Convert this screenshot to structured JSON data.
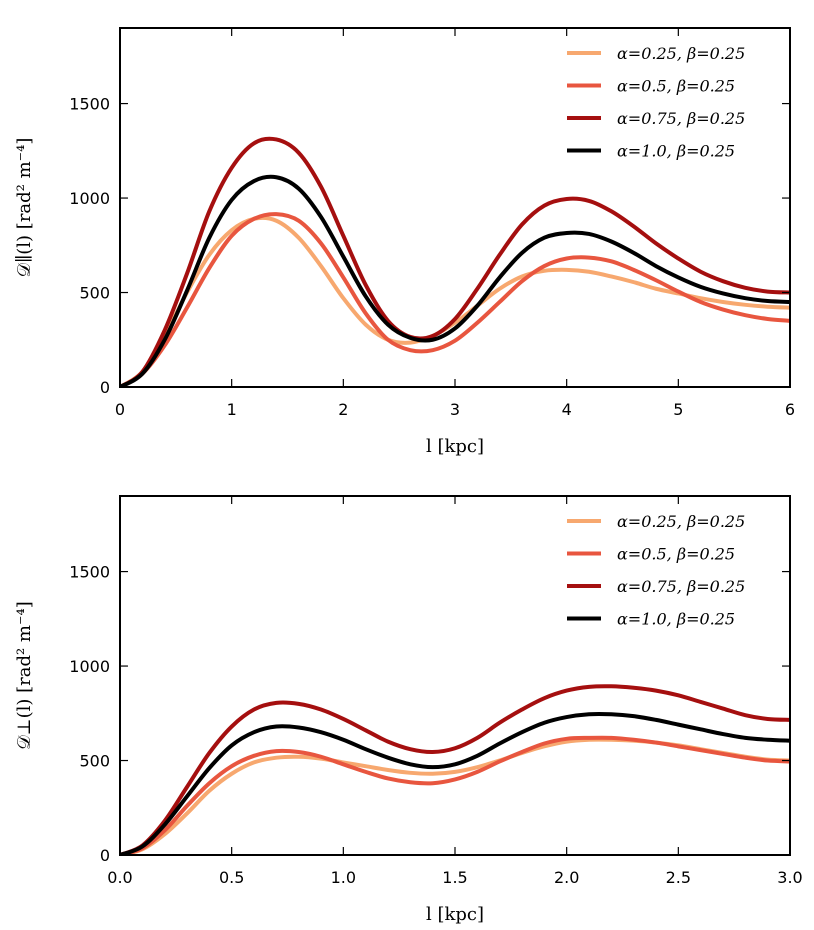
{
  "chart_data": [
    {
      "type": "line",
      "name": "parallel",
      "xlabel": "l [kpc]",
      "ylabel": "𝒟∥(l) [rad² m⁻⁴]",
      "xlim": [
        0,
        6
      ],
      "ylim": [
        0,
        1900
      ],
      "xticks": [
        0,
        1,
        2,
        3,
        4,
        5,
        6
      ],
      "xtick_labels": [
        "0",
        "1",
        "2",
        "3",
        "4",
        "5",
        "6"
      ],
      "yticks": [
        0,
        500,
        1000,
        1500
      ],
      "ytick_labels": [
        "0",
        "500",
        "1000",
        "1500"
      ],
      "grid": false,
      "legend_position": "top-right",
      "series": [
        {
          "name": "α=0.25, β=0.25",
          "color": "#f7a86f",
          "x": [
            0,
            0.2,
            0.4,
            0.6,
            0.8,
            1.0,
            1.2,
            1.4,
            1.6,
            1.8,
            2.0,
            2.2,
            2.4,
            2.6,
            2.8,
            3.0,
            3.2,
            3.4,
            3.6,
            3.8,
            4.0,
            4.2,
            4.4,
            4.6,
            4.8,
            5.0,
            5.2,
            5.4,
            5.6,
            5.8,
            6.0
          ],
          "y": [
            0,
            80,
            270,
            500,
            700,
            830,
            890,
            880,
            790,
            640,
            470,
            330,
            250,
            235,
            270,
            340,
            430,
            520,
            585,
            615,
            620,
            610,
            585,
            555,
            520,
            495,
            470,
            450,
            435,
            425,
            420
          ]
        },
        {
          "name": "α=0.5, β=0.25",
          "color": "#e8563f",
          "x": [
            0,
            0.2,
            0.4,
            0.6,
            0.8,
            1.0,
            1.2,
            1.4,
            1.6,
            1.8,
            2.0,
            2.2,
            2.4,
            2.6,
            2.8,
            3.0,
            3.2,
            3.4,
            3.6,
            3.8,
            4.0,
            4.2,
            4.4,
            4.6,
            4.8,
            5.0,
            5.2,
            5.4,
            5.6,
            5.8,
            6.0
          ],
          "y": [
            0,
            70,
            220,
            420,
            630,
            800,
            890,
            915,
            880,
            760,
            580,
            390,
            250,
            195,
            195,
            245,
            340,
            450,
            560,
            640,
            680,
            685,
            665,
            620,
            565,
            505,
            450,
            410,
            380,
            360,
            350
          ]
        },
        {
          "name": "α=0.75, β=0.25",
          "color": "#a50f0f",
          "x": [
            0,
            0.2,
            0.4,
            0.6,
            0.8,
            1.0,
            1.2,
            1.4,
            1.6,
            1.8,
            2.0,
            2.2,
            2.4,
            2.6,
            2.8,
            3.0,
            3.2,
            3.4,
            3.6,
            3.8,
            4.0,
            4.2,
            4.4,
            4.6,
            4.8,
            5.0,
            5.2,
            5.4,
            5.6,
            5.8,
            6.0
          ],
          "y": [
            0,
            80,
            300,
            600,
            930,
            1160,
            1290,
            1310,
            1240,
            1060,
            800,
            540,
            350,
            265,
            270,
            360,
            520,
            700,
            860,
            960,
            995,
            985,
            930,
            850,
            760,
            680,
            610,
            560,
            525,
            505,
            500
          ]
        },
        {
          "name": "α=1.0, β=0.25",
          "color": "#000000",
          "x": [
            0,
            0.2,
            0.4,
            0.6,
            0.8,
            1.0,
            1.2,
            1.4,
            1.6,
            1.8,
            2.0,
            2.2,
            2.4,
            2.6,
            2.8,
            3.0,
            3.2,
            3.4,
            3.6,
            3.8,
            4.0,
            4.2,
            4.4,
            4.6,
            4.8,
            5.0,
            5.2,
            5.4,
            5.6,
            5.8,
            6.0
          ],
          "y": [
            0,
            70,
            250,
            510,
            790,
            990,
            1090,
            1110,
            1050,
            900,
            690,
            480,
            330,
            260,
            250,
            310,
            430,
            580,
            710,
            790,
            815,
            810,
            770,
            710,
            640,
            580,
            530,
            495,
            470,
            455,
            450
          ]
        }
      ]
    },
    {
      "type": "line",
      "name": "perpendicular",
      "xlabel": "l [kpc]",
      "ylabel": "𝒟⊥(l) [rad² m⁻⁴]",
      "xlim": [
        0,
        3
      ],
      "ylim": [
        0,
        1900
      ],
      "xticks": [
        0,
        0.5,
        1.0,
        1.5,
        2.0,
        2.5,
        3.0
      ],
      "xtick_labels": [
        "0.0",
        "0.5",
        "1.0",
        "1.5",
        "2.0",
        "2.5",
        "3.0"
      ],
      "yticks": [
        0,
        500,
        1000,
        1500
      ],
      "ytick_labels": [
        "0",
        "500",
        "1000",
        "1500"
      ],
      "grid": false,
      "legend_position": "top-right",
      "series": [
        {
          "name": "α=0.25, β=0.25",
          "color": "#f7a86f",
          "x": [
            0,
            0.1,
            0.2,
            0.3,
            0.4,
            0.5,
            0.6,
            0.7,
            0.8,
            0.9,
            1.0,
            1.1,
            1.2,
            1.3,
            1.4,
            1.5,
            1.6,
            1.7,
            1.8,
            1.9,
            2.0,
            2.1,
            2.2,
            2.3,
            2.4,
            2.5,
            2.6,
            2.7,
            2.8,
            2.9,
            3.0
          ],
          "y": [
            0,
            30,
            110,
            220,
            340,
            430,
            490,
            515,
            520,
            510,
            490,
            470,
            450,
            435,
            430,
            440,
            465,
            500,
            540,
            575,
            600,
            610,
            610,
            605,
            595,
            580,
            560,
            540,
            520,
            505,
            500
          ]
        },
        {
          "name": "α=0.5, β=0.25",
          "color": "#e8563f",
          "x": [
            0,
            0.1,
            0.2,
            0.3,
            0.4,
            0.5,
            0.6,
            0.7,
            0.8,
            0.9,
            1.0,
            1.1,
            1.2,
            1.3,
            1.4,
            1.5,
            1.6,
            1.7,
            1.8,
            1.9,
            2.0,
            2.1,
            2.2,
            2.3,
            2.4,
            2.5,
            2.6,
            2.7,
            2.8,
            2.9,
            3.0
          ],
          "y": [
            0,
            35,
            130,
            260,
            380,
            470,
            525,
            550,
            545,
            520,
            480,
            440,
            405,
            385,
            380,
            400,
            440,
            495,
            545,
            590,
            615,
            620,
            620,
            610,
            595,
            575,
            555,
            535,
            515,
            500,
            495
          ]
        },
        {
          "name": "α=0.75, β=0.25",
          "color": "#a50f0f",
          "x": [
            0,
            0.1,
            0.2,
            0.3,
            0.4,
            0.5,
            0.6,
            0.7,
            0.8,
            0.9,
            1.0,
            1.1,
            1.2,
            1.3,
            1.4,
            1.5,
            1.6,
            1.7,
            1.8,
            1.9,
            2.0,
            2.1,
            2.2,
            2.3,
            2.4,
            2.5,
            2.6,
            2.7,
            2.8,
            2.9,
            3.0
          ],
          "y": [
            0,
            50,
            180,
            360,
            540,
            680,
            770,
            805,
            800,
            770,
            720,
            660,
            600,
            560,
            545,
            565,
            620,
            700,
            770,
            830,
            870,
            890,
            893,
            885,
            870,
            845,
            810,
            775,
            740,
            720,
            715
          ]
        },
        {
          "name": "α=1.0, β=0.25",
          "color": "#000000",
          "x": [
            0,
            0.1,
            0.2,
            0.3,
            0.4,
            0.5,
            0.6,
            0.7,
            0.8,
            0.9,
            1.0,
            1.1,
            1.2,
            1.3,
            1.4,
            1.5,
            1.6,
            1.7,
            1.8,
            1.9,
            2.0,
            2.1,
            2.2,
            2.3,
            2.4,
            2.5,
            2.6,
            2.7,
            2.8,
            2.9,
            3.0
          ],
          "y": [
            0,
            45,
            160,
            310,
            460,
            580,
            650,
            680,
            675,
            650,
            610,
            560,
            515,
            480,
            465,
            480,
            525,
            590,
            650,
            700,
            730,
            745,
            745,
            735,
            715,
            690,
            665,
            640,
            620,
            610,
            605
          ]
        }
      ]
    }
  ]
}
